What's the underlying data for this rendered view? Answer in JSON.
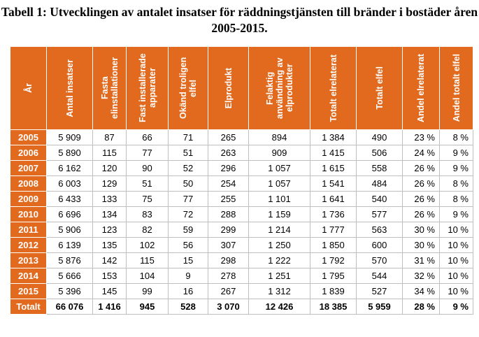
{
  "title": "Tabell 1: Utvecklingen av antalet insatser för räddningstjänsten till bränder i bostäder åren 2005-2015.",
  "headers": [
    "År",
    "Antal insatser",
    "Fasta elinstallationer",
    "Fast installerade apparater",
    "Okänd troligen elfel",
    "Elprodukt",
    "Felaktig användning av elprodukter",
    "Totalt elrelaterat",
    "Totalt elfel",
    "Andel elrelaterat",
    "Andel totalt elfel"
  ],
  "rows": [
    [
      "2005",
      "5 909",
      "87",
      "66",
      "71",
      "265",
      "894",
      "1 384",
      "490",
      "23 %",
      "8 %"
    ],
    [
      "2006",
      "5 890",
      "115",
      "77",
      "51",
      "263",
      "909",
      "1 415",
      "506",
      "24 %",
      "9 %"
    ],
    [
      "2007",
      "6 162",
      "120",
      "90",
      "52",
      "296",
      "1 057",
      "1 615",
      "558",
      "26 %",
      "9 %"
    ],
    [
      "2008",
      "6 003",
      "129",
      "51",
      "50",
      "254",
      "1 057",
      "1 541",
      "484",
      "26 %",
      "8 %"
    ],
    [
      "2009",
      "6 433",
      "133",
      "75",
      "77",
      "255",
      "1 101",
      "1 641",
      "540",
      "26 %",
      "8 %"
    ],
    [
      "2010",
      "6 696",
      "134",
      "83",
      "72",
      "288",
      "1 159",
      "1 736",
      "577",
      "26 %",
      "9 %"
    ],
    [
      "2011",
      "5 906",
      "123",
      "82",
      "59",
      "299",
      "1 214",
      "1 777",
      "563",
      "30 %",
      "10 %"
    ],
    [
      "2012",
      "6 139",
      "135",
      "102",
      "56",
      "307",
      "1 250",
      "1 850",
      "600",
      "30 %",
      "10 %"
    ],
    [
      "2013",
      "5 876",
      "142",
      "115",
      "15",
      "298",
      "1 222",
      "1 792",
      "570",
      "31 %",
      "10 %"
    ],
    [
      "2014",
      "5 666",
      "153",
      "104",
      "9",
      "278",
      "1 251",
      "1 795",
      "544",
      "32 %",
      "10 %"
    ],
    [
      "2015",
      "5 396",
      "145",
      "99",
      "16",
      "267",
      "1 312",
      "1 839",
      "527",
      "34 %",
      "10 %"
    ]
  ],
  "total": [
    "Totalt",
    "66 076",
    "1 416",
    "945",
    "528",
    "3 070",
    "12 426",
    "18 385",
    "5 959",
    "28 %",
    "9 %"
  ],
  "colors": {
    "header_bg": "#e26a1e",
    "header_text": "#ffffff",
    "grid": "#bfbfbf"
  }
}
